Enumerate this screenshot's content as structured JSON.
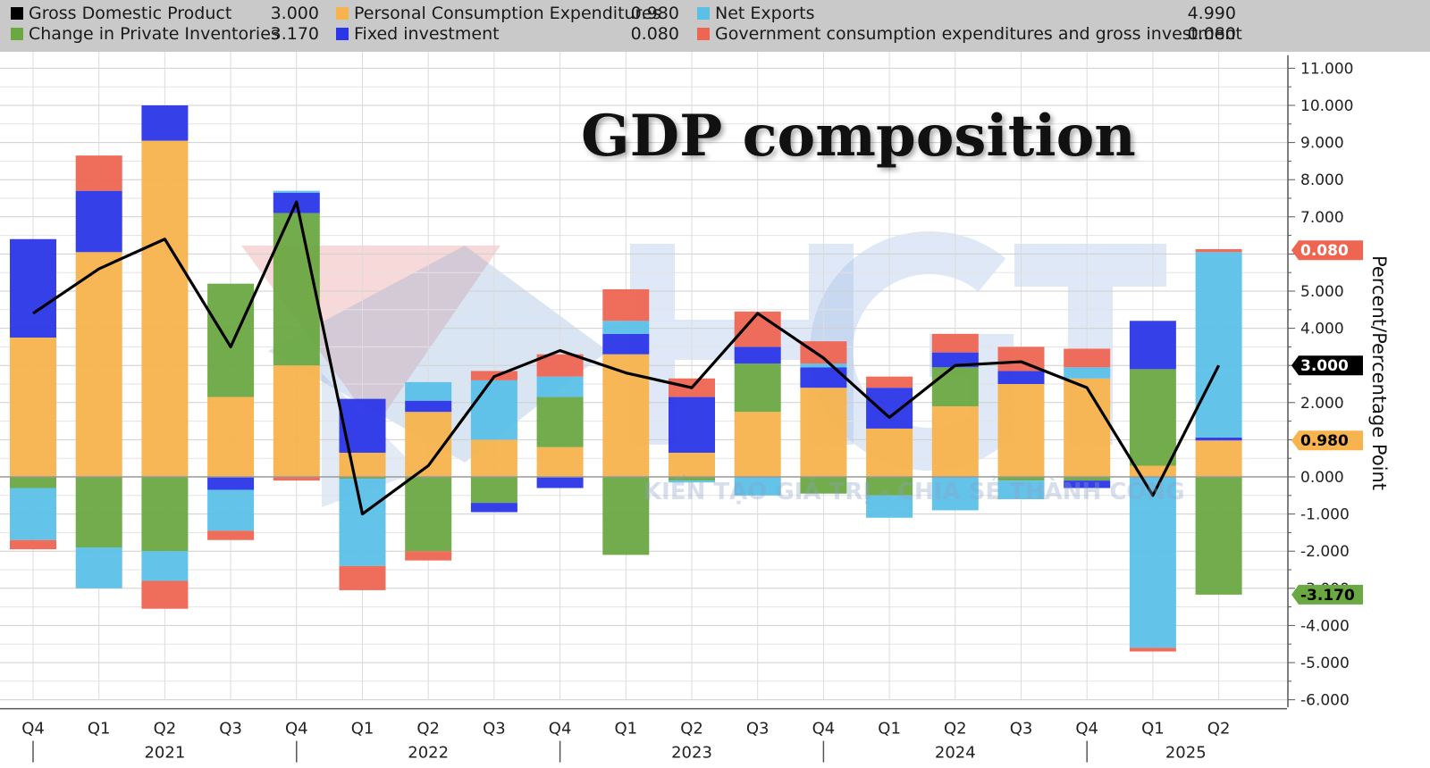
{
  "title": "GDP composition",
  "watermark": "KIẾN TẠO GIÁ TRỊ - CHIA SẺ THÀNH CÔNG",
  "legend": [
    {
      "label": "Gross Domestic Product",
      "value": "3.000",
      "color": "#000000"
    },
    {
      "label": "Personal Consumption Expenditures",
      "value": "0.980",
      "color": "#f7b34d"
    },
    {
      "label": "Net Exports",
      "value": "4.990",
      "color": "#5bc0e8"
    },
    {
      "label": "Change in Private Inventories",
      "value": "-3.170",
      "color": "#6aa842"
    },
    {
      "label": "Fixed investment",
      "value": "0.080",
      "color": "#2b36e8"
    },
    {
      "label": "Government consumption expenditures and gross investment",
      "value": "0.080",
      "color": "#ee6552"
    }
  ],
  "chart_data": {
    "type": "bar",
    "stacked": true,
    "categories": [
      "Q4",
      "Q1",
      "Q2",
      "Q3",
      "Q4",
      "Q1",
      "Q2",
      "Q3",
      "Q4",
      "Q1",
      "Q2",
      "Q3",
      "Q4",
      "Q1",
      "Q2",
      "Q3",
      "Q4",
      "Q1",
      "Q2"
    ],
    "year_labels": [
      {
        "label": "2021",
        "at_index": 2
      },
      {
        "label": "2022",
        "at_index": 6
      },
      {
        "label": "2023",
        "at_index": 10
      },
      {
        "label": "2024",
        "at_index": 14
      },
      {
        "label": "2025",
        "at_index": 17.5
      }
    ],
    "ylabel": "Percent/Percentage Point",
    "ylim": [
      -6,
      11
    ],
    "yticks": [
      "11.000",
      "10.000",
      "9.000",
      "8.000",
      "7.000",
      "6.000",
      "5.000",
      "4.000",
      "3.000",
      "2.000",
      "1.000",
      "0.000",
      "-1.000",
      "-2.000",
      "-3.000",
      "-4.000",
      "-5.000",
      "-6.000"
    ],
    "grid": true,
    "legend_position": "top",
    "series": [
      {
        "name": "Personal Consumption Expenditures",
        "color": "#f7b34d",
        "values": [
          3.75,
          6.05,
          9.05,
          2.15,
          3.0,
          0.65,
          1.75,
          1.0,
          0.8,
          3.3,
          0.65,
          1.75,
          2.4,
          1.3,
          1.9,
          2.5,
          2.65,
          0.3,
          0.98
        ]
      },
      {
        "name": "Change in Private Inventories",
        "color": "#6aa842",
        "values": [
          -0.3,
          -1.9,
          -2.0,
          3.05,
          4.1,
          -0.05,
          -2.0,
          -0.7,
          1.35,
          -2.1,
          -0.1,
          1.3,
          -0.45,
          -0.5,
          1.05,
          -0.1,
          -0.1,
          2.6,
          -3.17
        ]
      },
      {
        "name": "Fixed investment",
        "color": "#2b36e8",
        "values": [
          2.65,
          1.65,
          0.95,
          -0.35,
          0.55,
          1.45,
          0.3,
          -0.25,
          -0.3,
          0.55,
          1.5,
          0.45,
          0.55,
          1.1,
          0.4,
          0.35,
          -0.2,
          1.3,
          0.08
        ]
      },
      {
        "name": "Net Exports",
        "color": "#5bc0e8",
        "values": [
          -1.4,
          -1.1,
          -0.8,
          -1.1,
          0.05,
          -2.35,
          0.5,
          1.6,
          0.55,
          0.35,
          -0.05,
          -0.5,
          0.1,
          -0.6,
          -0.9,
          -0.5,
          0.3,
          -4.6,
          4.99
        ]
      },
      {
        "name": "Government consumption expenditures and gross investment",
        "color": "#ee6552",
        "values": [
          -0.25,
          0.95,
          -0.75,
          -0.25,
          -0.1,
          -0.65,
          -0.25,
          0.25,
          0.6,
          0.85,
          0.5,
          0.95,
          0.6,
          0.3,
          0.5,
          0.65,
          0.5,
          -0.1,
          0.08
        ]
      }
    ],
    "line": {
      "name": "Gross Domestic Product",
      "color": "#000000",
      "values": [
        4.4,
        5.6,
        6.4,
        3.5,
        7.4,
        -1.0,
        0.3,
        2.7,
        3.4,
        2.8,
        2.4,
        4.4,
        3.2,
        1.6,
        3.0,
        3.1,
        2.4,
        -0.5,
        3.0
      ]
    },
    "axis_tags": [
      {
        "label": "0.080",
        "value": 6.1,
        "color": "#ee6552",
        "text_color": "#ffffff"
      },
      {
        "label": "3.000",
        "value": 3.0,
        "color": "#000000",
        "text_color": "#ffffff"
      },
      {
        "label": "0.980",
        "value": 0.98,
        "color": "#f7b34d",
        "text_color": "#000000"
      },
      {
        "label": "-3.170",
        "value": -3.17,
        "color": "#6aa842",
        "text_color": "#000000"
      }
    ]
  }
}
